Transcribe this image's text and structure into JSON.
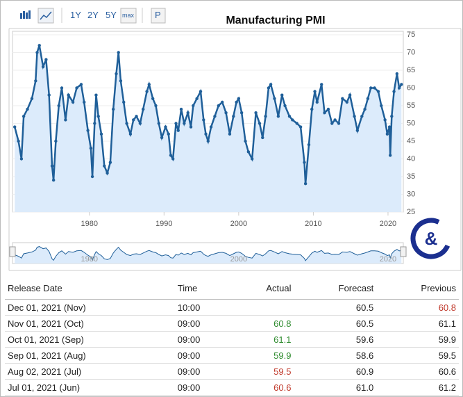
{
  "toolbar": {
    "buttons": [
      "1Y",
      "2Y",
      "5Y",
      "max",
      "P"
    ]
  },
  "logo": {
    "symbol": "&"
  },
  "chart_data": {
    "type": "line",
    "title": "Manufacturing PMI",
    "color": "#1f5f99",
    "fill": "#dcebfb",
    "grid": true,
    "xlim": [
      1969.7,
      2022.05
    ],
    "xticks": [
      1980,
      1990,
      2000,
      2010,
      2020
    ],
    "ylim": [
      25,
      75
    ],
    "yticks": [
      25,
      30,
      35,
      40,
      45,
      50,
      55,
      60,
      65,
      70,
      75
    ],
    "navigator_xticks": [
      1980,
      2000,
      2020
    ],
    "x": [
      1970.0,
      1970.5,
      1970.9,
      1971.2,
      1971.7,
      1972.3,
      1972.8,
      1973.0,
      1973.3,
      1973.8,
      1974.2,
      1974.6,
      1975.0,
      1975.2,
      1975.5,
      1975.9,
      1976.3,
      1976.8,
      1977.2,
      1977.8,
      1978.3,
      1978.9,
      1979.3,
      1979.8,
      1980.2,
      1980.4,
      1980.7,
      1980.9,
      1981.2,
      1981.6,
      1982.0,
      1982.4,
      1982.8,
      1983.2,
      1983.6,
      1983.9,
      1984.2,
      1984.6,
      1985.0,
      1985.5,
      1985.9,
      1986.3,
      1986.8,
      1987.2,
      1987.7,
      1988.0,
      1988.5,
      1988.9,
      1989.3,
      1989.7,
      1990.2,
      1990.6,
      1990.9,
      1991.2,
      1991.6,
      1991.9,
      1992.3,
      1992.7,
      1993.2,
      1993.6,
      1993.9,
      1994.4,
      1994.9,
      1995.3,
      1995.6,
      1995.9,
      1996.3,
      1996.8,
      1997.3,
      1997.8,
      1998.3,
      1998.8,
      1999.3,
      1999.7,
      2000.0,
      2000.4,
      2000.9,
      2001.3,
      2001.8,
      2002.3,
      2002.8,
      2003.2,
      2003.6,
      2004.0,
      2004.3,
      2004.8,
      2005.3,
      2005.8,
      2006.2,
      2006.8,
      2007.2,
      2007.8,
      2008.3,
      2008.8,
      2008.95,
      2009.4,
      2009.8,
      2010.2,
      2010.5,
      2011.1,
      2011.5,
      2012.0,
      2012.5,
      2012.9,
      2013.4,
      2013.9,
      2014.5,
      2014.9,
      2015.5,
      2015.9,
      2016.5,
      2016.9,
      2017.3,
      2017.7,
      2018.2,
      2018.7,
      2019.1,
      2019.6,
      2019.9,
      2020.2,
      2020.3,
      2020.5,
      2020.8,
      2021.2,
      2021.5,
      2021.8
    ],
    "values": [
      49,
      45,
      40,
      52,
      54,
      57,
      62,
      70,
      72,
      66,
      68,
      58,
      38,
      34,
      45,
      55,
      60,
      51,
      58,
      56,
      60,
      61,
      56,
      48,
      43,
      35,
      50,
      58,
      52,
      47,
      38,
      36,
      39,
      54,
      64,
      70,
      62,
      56,
      50,
      47,
      51,
      52,
      50,
      54,
      59,
      61,
      57,
      55,
      50,
      46,
      49,
      47,
      41,
      40,
      50,
      48,
      54,
      50,
      53,
      49,
      55,
      57,
      59,
      51,
      47,
      45,
      49,
      52,
      55,
      56,
      53,
      47,
      52,
      56,
      57,
      53,
      45,
      42,
      40,
      53,
      50,
      46,
      52,
      60,
      61,
      57,
      52,
      58,
      55,
      52,
      51,
      50,
      49,
      39,
      33,
      44,
      54,
      59,
      56,
      61,
      53,
      54,
      50,
      51,
      50,
      57,
      56,
      58,
      52,
      48,
      52,
      54,
      57,
      60,
      60,
      59,
      55,
      51,
      47,
      49,
      41,
      52,
      59,
      64,
      60,
      61
    ]
  },
  "table": {
    "headers": [
      "Release Date",
      "Time",
      "Actual",
      "Forecast",
      "Previous"
    ],
    "rows": [
      {
        "release_date": "Dec 01, 2021 (Nov)",
        "time": "10:00",
        "actual": null,
        "forecast": "60.5",
        "previous": "60.8",
        "actual_color": null,
        "previous_color": "#c0392b"
      },
      {
        "release_date": "Nov 01, 2021 (Oct)",
        "time": "09:00",
        "actual": "60.8",
        "forecast": "60.5",
        "previous": "61.1",
        "actual_color": "#2e8b2e",
        "previous_color": "#222222"
      },
      {
        "release_date": "Oct 01, 2021 (Sep)",
        "time": "09:00",
        "actual": "61.1",
        "forecast": "59.6",
        "previous": "59.9",
        "actual_color": "#2e8b2e",
        "previous_color": "#222222"
      },
      {
        "release_date": "Sep 01, 2021 (Aug)",
        "time": "09:00",
        "actual": "59.9",
        "forecast": "58.6",
        "previous": "59.5",
        "actual_color": "#2e8b2e",
        "previous_color": "#222222"
      },
      {
        "release_date": "Aug 02, 2021 (Jul)",
        "time": "09:00",
        "actual": "59.5",
        "forecast": "60.9",
        "previous": "60.6",
        "actual_color": "#c0392b",
        "previous_color": "#222222"
      },
      {
        "release_date": "Jul 01, 2021 (Jun)",
        "time": "09:00",
        "actual": "60.6",
        "forecast": "61.0",
        "previous": "61.2",
        "actual_color": "#c0392b",
        "previous_color": "#222222"
      }
    ]
  }
}
